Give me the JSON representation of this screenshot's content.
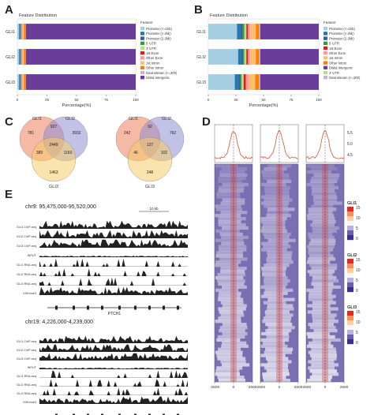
{
  "panels": {
    "a": "A",
    "b": "B",
    "c": "C",
    "d": "D",
    "e": "E"
  },
  "feature_colors": {
    "Promoter (<=1kb)": "#a6cee3",
    "Promoter (1-2kb)": "#1f78b4",
    "Promoter (2-3kb)": "#3a5fa0",
    "5' UTR": "#33a02c",
    "3' UTR": "#b2df8a",
    "1st Exon": "#e31a1c",
    "Other Exon": "#fb9a99",
    "1st Intron": "#fdbf6f",
    "Other Intron": "#ff7f00",
    "Downstream (<=300)": "#cab2d6",
    "Distal Intergenic": "#6a3d9a"
  },
  "chart_data": [
    {
      "type": "bar",
      "panel": "A",
      "title": "Feature Distribution",
      "xlabel": "Percentage(%)",
      "ylabel": "",
      "categories": [
        "GLI1",
        "GLI2",
        "GLI3"
      ],
      "xlim": [
        0,
        100
      ],
      "x_ticks": [
        "0",
        "25",
        "50",
        "75",
        "100"
      ],
      "legend_title": "Feature",
      "legend": [
        "Promoter (<=1kb)",
        "Promoter (1-2kb)",
        "Promoter (2-3kb)",
        "5' UTR",
        "3' UTR",
        "1st Exon",
        "Other Exon",
        "1st Intron",
        "Other Intron",
        "Downstream (<=300)",
        "Distal Intergenic"
      ],
      "series": [
        {
          "name": "Promoter (<=1kb)",
          "values": [
            1.5,
            1.5,
            1.5
          ]
        },
        {
          "name": "Promoter (1-2kb)",
          "values": [
            0.8,
            0.8,
            0.8
          ]
        },
        {
          "name": "Promoter (2-3kb)",
          "values": [
            0.7,
            0.7,
            0.7
          ]
        },
        {
          "name": "5' UTR",
          "values": [
            0.1,
            0.1,
            0.1
          ]
        },
        {
          "name": "3' UTR",
          "values": [
            0.5,
            0.5,
            0.5
          ]
        },
        {
          "name": "1st Exon",
          "values": [
            0.3,
            0.3,
            0.3
          ]
        },
        {
          "name": "Other Exon",
          "values": [
            0.6,
            0.6,
            0.6
          ]
        },
        {
          "name": "1st Intron",
          "values": [
            1.0,
            1.0,
            1.0
          ]
        },
        {
          "name": "Other Intron",
          "values": [
            1.5,
            1.5,
            1.5
          ]
        },
        {
          "name": "Downstream (<=300)",
          "values": [
            0.2,
            0.2,
            0.2
          ]
        },
        {
          "name": "Distal Intergenic",
          "values": [
            92.8,
            92.8,
            92.8
          ]
        }
      ]
    },
    {
      "type": "bar",
      "panel": "B",
      "title": "Feature Distribution",
      "xlabel": "Percentage(%)",
      "ylabel": "",
      "categories": [
        "GLI1",
        "GLI2",
        "GLI3"
      ],
      "xlim": [
        0,
        100
      ],
      "x_ticks": [
        "0",
        "25",
        "50",
        "75",
        "100"
      ],
      "legend_title": "Feature",
      "legend": [
        "Promoter (<=1kb)",
        "Promoter (1-2kb)",
        "Promoter (2-3kb)",
        "5' UTR",
        "1st Exon",
        "Other Exon",
        "1st Intron",
        "Other Intron",
        "Distal Intergenic",
        "3' UTR",
        "Downstream (<=300)"
      ],
      "series": [
        {
          "name": "Promoter (<=1kb)",
          "values": [
            26,
            27,
            24
          ]
        },
        {
          "name": "Promoter (1-2kb)",
          "values": [
            3,
            2.5,
            3
          ]
        },
        {
          "name": "Promoter (2-3kb)",
          "values": [
            2,
            2,
            2
          ]
        },
        {
          "name": "5' UTR",
          "values": [
            1.5,
            1,
            1
          ]
        },
        {
          "name": "3' UTR",
          "values": [
            2,
            2,
            2
          ]
        },
        {
          "name": "1st Exon",
          "values": [
            1.5,
            1.5,
            2
          ]
        },
        {
          "name": "Other Exon",
          "values": [
            2,
            2,
            2.5
          ]
        },
        {
          "name": "1st Intron",
          "values": [
            5,
            5,
            6
          ]
        },
        {
          "name": "Other Intron",
          "values": [
            3,
            3,
            3.5
          ]
        },
        {
          "name": "Downstream (<=300)",
          "values": [
            1,
            1,
            1
          ]
        },
        {
          "name": "Distal Intergenic",
          "values": [
            53,
            53,
            53
          ]
        }
      ]
    }
  ],
  "venn": [
    {
      "labels": [
        "GLI1",
        "GLI2",
        "GLI3"
      ],
      "colors": [
        "#ef7f5c",
        "#8f8ed2",
        "#f6cc68"
      ],
      "regions": {
        "a": "781",
        "b": "3932",
        "c": "1463",
        "ab": "927",
        "ac": "389",
        "bc": "1160",
        "abc": "2449"
      }
    },
    {
      "labels": [
        "GLI1",
        "GLI2",
        "GLI3"
      ],
      "colors": [
        "#ef7f5c",
        "#8f8ed2",
        "#f6cc68"
      ],
      "regions": {
        "a": "242",
        "b": "762",
        "c": "248",
        "ab": "92",
        "ac": "46",
        "bc": "102",
        "abc": "137"
      }
    }
  ],
  "heatmap": {
    "x_ticks": [
      "-2500",
      "0",
      "2500"
    ],
    "profile_ticks": [
      "5.5",
      "5.0",
      "4.5"
    ],
    "colorbars": [
      {
        "name": "GLI1",
        "ticks": [
          "15",
          "10",
          "5",
          "0"
        ]
      },
      {
        "name": "GLI2",
        "ticks": [
          "15",
          "10",
          "5",
          "0"
        ]
      },
      {
        "name": "GLI3",
        "ticks": [
          "15",
          "10",
          "5",
          "0"
        ]
      }
    ]
  },
  "tracks": {
    "locus1": {
      "coords": "chr9: 95,475,000-95,520,000",
      "scale": "10 kb",
      "rows": [
        "GLI1 ChIP-seq",
        "GLI2 ChIP-seq",
        "GLI3 ChIP-seq",
        "INPUT",
        "GLI1 RNA-seq",
        "GLI2 RNA-seq",
        "GLI3 RNA-seq",
        "H3K4me3"
      ],
      "gene": "PTCH1"
    },
    "locus2": {
      "coords": "chr19: 4,226,000-4,239,000",
      "rows": [
        "GLI1 ChIP-seq",
        "GLI2 ChIP-seq",
        "GLI3 ChIP-seq",
        "INPUT",
        "GLI1 RNA-seq",
        "GLI2 RNA-seq",
        "GLI3 RNA-seq",
        "H3K4me3"
      ],
      "gene": "FRI3"
    }
  }
}
